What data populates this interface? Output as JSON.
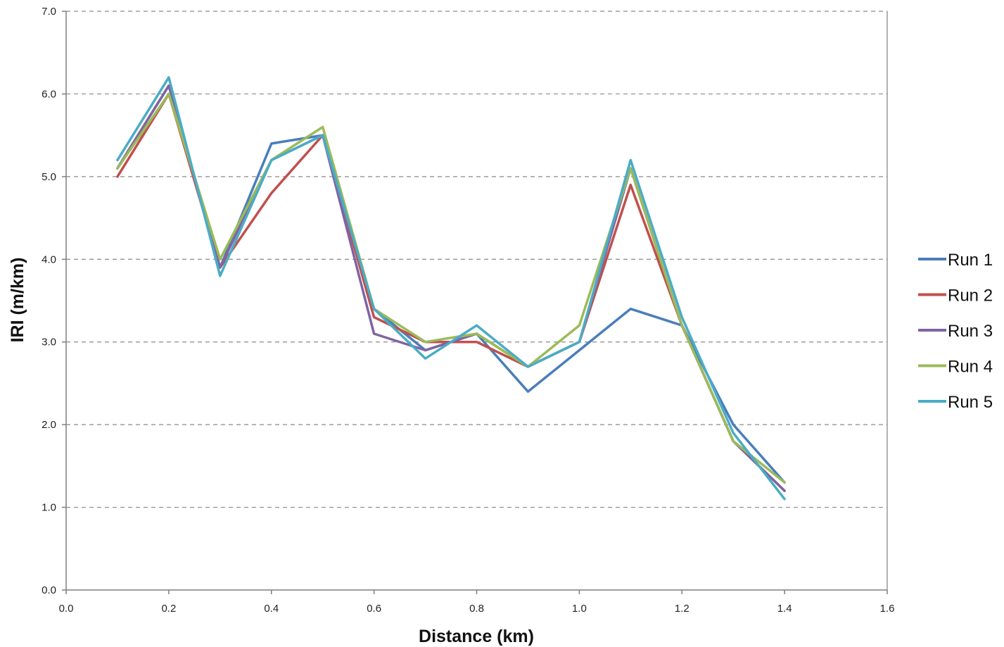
{
  "chart_data": {
    "type": "line",
    "title": "",
    "xlabel": "Distance (km)",
    "ylabel": "IRI (m/km)",
    "xlim": [
      0,
      1.6
    ],
    "ylim": [
      0,
      7
    ],
    "x_ticks": [
      0.0,
      0.2,
      0.4,
      0.6,
      0.8,
      1.0,
      1.2,
      1.4,
      1.6
    ],
    "x_tick_labels": [
      "0.0",
      "0.2",
      "0.4",
      "0.6",
      "0.8",
      "1.0",
      "1.2",
      "1.4",
      "1.6"
    ],
    "y_ticks": [
      0,
      1,
      2,
      3,
      4,
      5,
      6,
      7
    ],
    "y_tick_labels": [
      "0.0",
      "1.0",
      "2.0",
      "3.0",
      "4.0",
      "5.0",
      "6.0",
      "7.0"
    ],
    "grid": "horizontal-dashed",
    "legend_position": "right",
    "x": [
      0.1,
      0.2,
      0.3,
      0.4,
      0.5,
      0.6,
      0.7,
      0.8,
      0.9,
      1.0,
      1.1,
      1.2,
      1.3,
      1.4
    ],
    "series": [
      {
        "name": "Run 1",
        "color": "#4a7ebb",
        "values": [
          5.1,
          6.1,
          3.9,
          5.4,
          5.5,
          3.4,
          2.9,
          3.1,
          2.4,
          2.9,
          3.4,
          3.2,
          2.0,
          1.3
        ]
      },
      {
        "name": "Run 2",
        "color": "#c0504d",
        "values": [
          5.0,
          6.0,
          3.9,
          4.8,
          5.5,
          3.3,
          3.0,
          3.0,
          2.7,
          3.0,
          4.9,
          3.2,
          1.8,
          1.2
        ]
      },
      {
        "name": "Run 3",
        "color": "#8064a2",
        "values": [
          5.1,
          6.1,
          3.9,
          5.2,
          5.5,
          3.1,
          2.9,
          3.1,
          2.7,
          3.0,
          5.1,
          3.2,
          1.8,
          1.2
        ]
      },
      {
        "name": "Run 4",
        "color": "#9bbb59",
        "values": [
          5.1,
          6.0,
          4.0,
          5.2,
          5.6,
          3.4,
          3.0,
          3.1,
          2.7,
          3.2,
          5.1,
          3.2,
          1.8,
          1.3
        ]
      },
      {
        "name": "Run 5",
        "color": "#4bacc6",
        "values": [
          5.2,
          6.2,
          3.8,
          5.2,
          5.5,
          3.4,
          2.8,
          3.2,
          2.7,
          3.0,
          5.2,
          3.3,
          1.9,
          1.1
        ]
      }
    ]
  }
}
